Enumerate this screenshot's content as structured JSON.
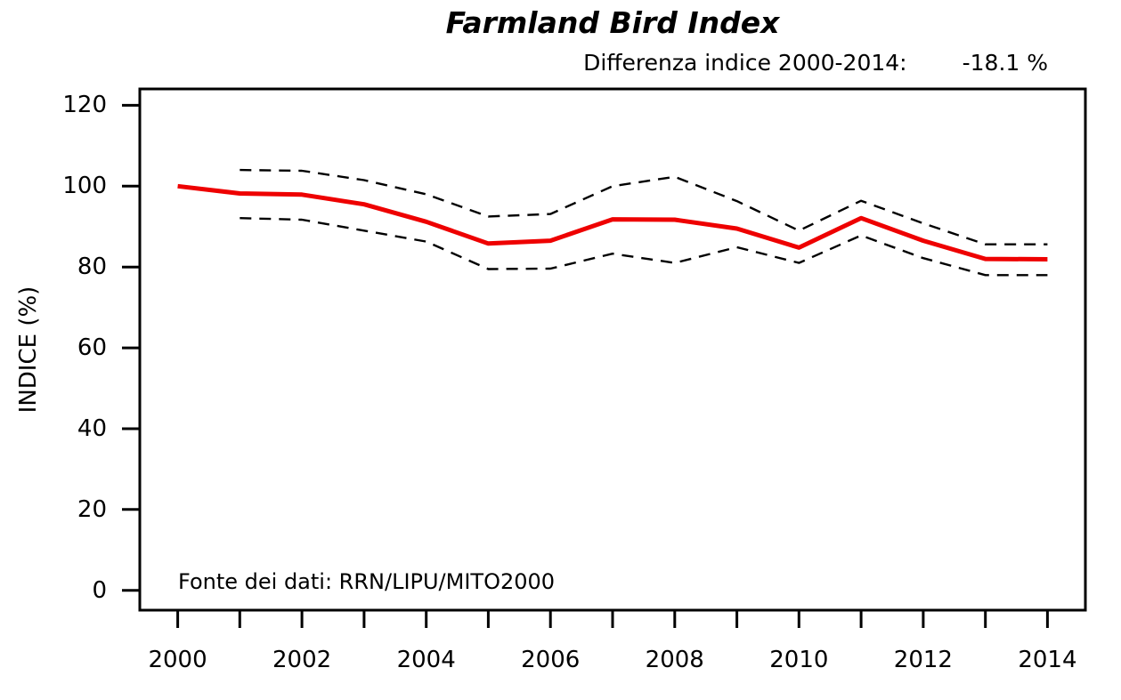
{
  "page": {
    "background": "#ffffff"
  },
  "header": {
    "title": "Farmland Bird Index",
    "subtitle_label": "Differenza indice 2000-2014:",
    "subtitle_value": "-18.1 %"
  },
  "source_note": "Fonte dei dati: RRN/LIPU/MITO2000",
  "colors": {
    "index_line": "#EE0000",
    "ci_line": "#000000",
    "axis": "#000000"
  },
  "chart_data": {
    "type": "line",
    "title": "Farmland Bird Index",
    "subtitle": "Differenza indice 2000-2014: -18.1 %",
    "xlabel": "",
    "ylabel": "INDICE (%)",
    "grid": false,
    "legend": "none",
    "x": [
      2000,
      2001,
      2002,
      2003,
      2004,
      2005,
      2006,
      2007,
      2008,
      2009,
      2010,
      2011,
      2012,
      2013,
      2014
    ],
    "series": [
      {
        "name": "indice",
        "style": "solid",
        "color": "#EE0000",
        "values": [
          100,
          98.2,
          97.9,
          95.5,
          91.2,
          85.8,
          86.5,
          91.8,
          91.7,
          89.5,
          84.8,
          92.1,
          86.5,
          82,
          81.9
        ]
      },
      {
        "name": "intervallo-confidenza-superiore",
        "style": "dashed",
        "color": "#000000",
        "values": [
          null,
          104,
          103.8,
          101.5,
          98,
          92.5,
          93.1,
          100,
          102.3,
          96.3,
          89,
          96.4,
          90.8,
          85.6,
          85.6
        ]
      },
      {
        "name": "intervallo-confidenza-inferiore",
        "style": "dashed",
        "color": "#000000",
        "values": [
          null,
          92.1,
          91.7,
          89,
          86.3,
          79.5,
          79.6,
          83.3,
          81,
          84.9,
          81,
          87.8,
          82.2,
          78,
          78
        ]
      }
    ],
    "xlim": [
      1999.39,
      2014.61
    ],
    "ylim": [
      -4.9,
      124.05
    ],
    "y_ticks": [
      0,
      20,
      40,
      60,
      80,
      100,
      120
    ],
    "x_tick_years": [
      2000,
      2001,
      2002,
      2003,
      2004,
      2005,
      2006,
      2007,
      2008,
      2009,
      2010,
      2011,
      2012,
      2013,
      2014
    ],
    "x_label_years": [
      2000,
      2002,
      2004,
      2006,
      2008,
      2010,
      2012,
      2014
    ],
    "source": "Fonte dei dati: RRN/LIPU/MITO2000"
  }
}
